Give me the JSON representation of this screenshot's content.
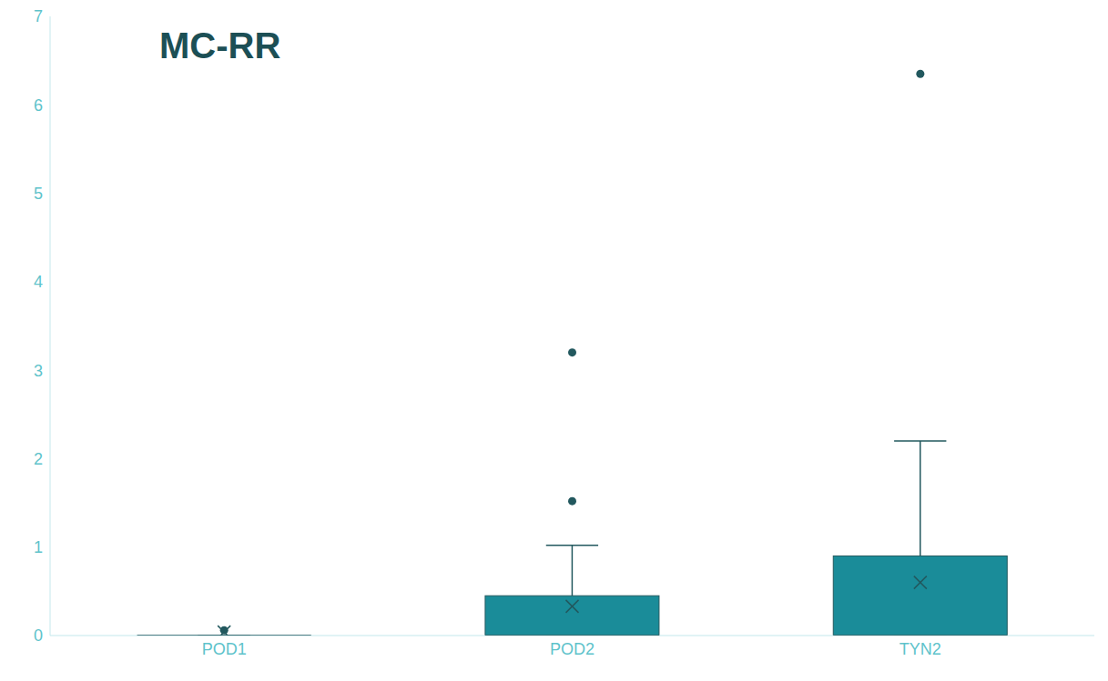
{
  "chart_data": {
    "type": "box",
    "title": "MC-RR",
    "categories": [
      "POD1",
      "POD2",
      "TYN2"
    ],
    "boxes": [
      {
        "min": 0,
        "q1": 0,
        "median": 0,
        "q3": 0,
        "max": 0,
        "mean": 0.04,
        "outliers": [
          0.06
        ]
      },
      {
        "min": 0,
        "q1": 0,
        "median": 0,
        "q3": 0.45,
        "max": 1.02,
        "mean": 0.33,
        "outliers": [
          1.52,
          3.2
        ]
      },
      {
        "min": 0,
        "q1": 0,
        "median": 0,
        "q3": 0.9,
        "max": 2.2,
        "mean": 0.6,
        "outliers": [
          6.35
        ]
      }
    ],
    "color": "#1a8c99",
    "marker": "x",
    "ylim": [
      0,
      7
    ],
    "yticks": [
      0,
      1,
      2,
      3,
      4,
      5,
      6,
      7
    ],
    "grid": false
  }
}
